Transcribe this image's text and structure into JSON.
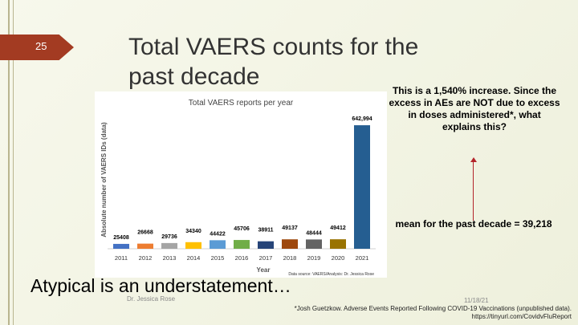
{
  "slide": {
    "number": "25",
    "title": "Total VAERS counts for the past decade",
    "note": "This is a 1,540% increase. Since the excess in AEs are NOT due to excess in doses administered*, what explains this?",
    "mean_label": "mean for the past decade = 39,218",
    "subtitle": "Atypical is an understatement…",
    "author": "Dr. Jessica Rose",
    "date": "11/18/21",
    "footnote_line1": "*Josh Guetzkow. Adverse Events Reported Following COVID-19 Vaccinations (unpublished data).",
    "footnote_line2": "https://tinyurl.com/CovidvFluReport"
  },
  "chart_data": {
    "type": "bar",
    "title": "Total VAERS reports per year",
    "xlabel": "Year",
    "ylabel": "Absolute number of VAERS IDs (data)",
    "source": "Data source: VAERS/Analysis: Dr. Jessica Rose",
    "categories": [
      "2011",
      "2012",
      "2013",
      "2014",
      "2015",
      "2016",
      "2017",
      "2018",
      "2019",
      "2020",
      "2021"
    ],
    "values": [
      25408,
      26668,
      29736,
      34340,
      44422,
      45706,
      38911,
      49137,
      48444,
      49412,
      642994
    ],
    "value_labels": [
      "25408",
      "26668",
      "29736",
      "34340",
      "44422",
      "45706",
      "38911",
      "49137",
      "48444",
      "49412",
      "642,994"
    ],
    "colors": [
      "#4472c4",
      "#ed7d31",
      "#a5a5a5",
      "#ffc000",
      "#5b9bd5",
      "#70ad47",
      "#264478",
      "#9e480e",
      "#636363",
      "#997300",
      "#255e91"
    ],
    "ylim": [
      0,
      660000
    ],
    "grid": false,
    "legend": "none"
  }
}
